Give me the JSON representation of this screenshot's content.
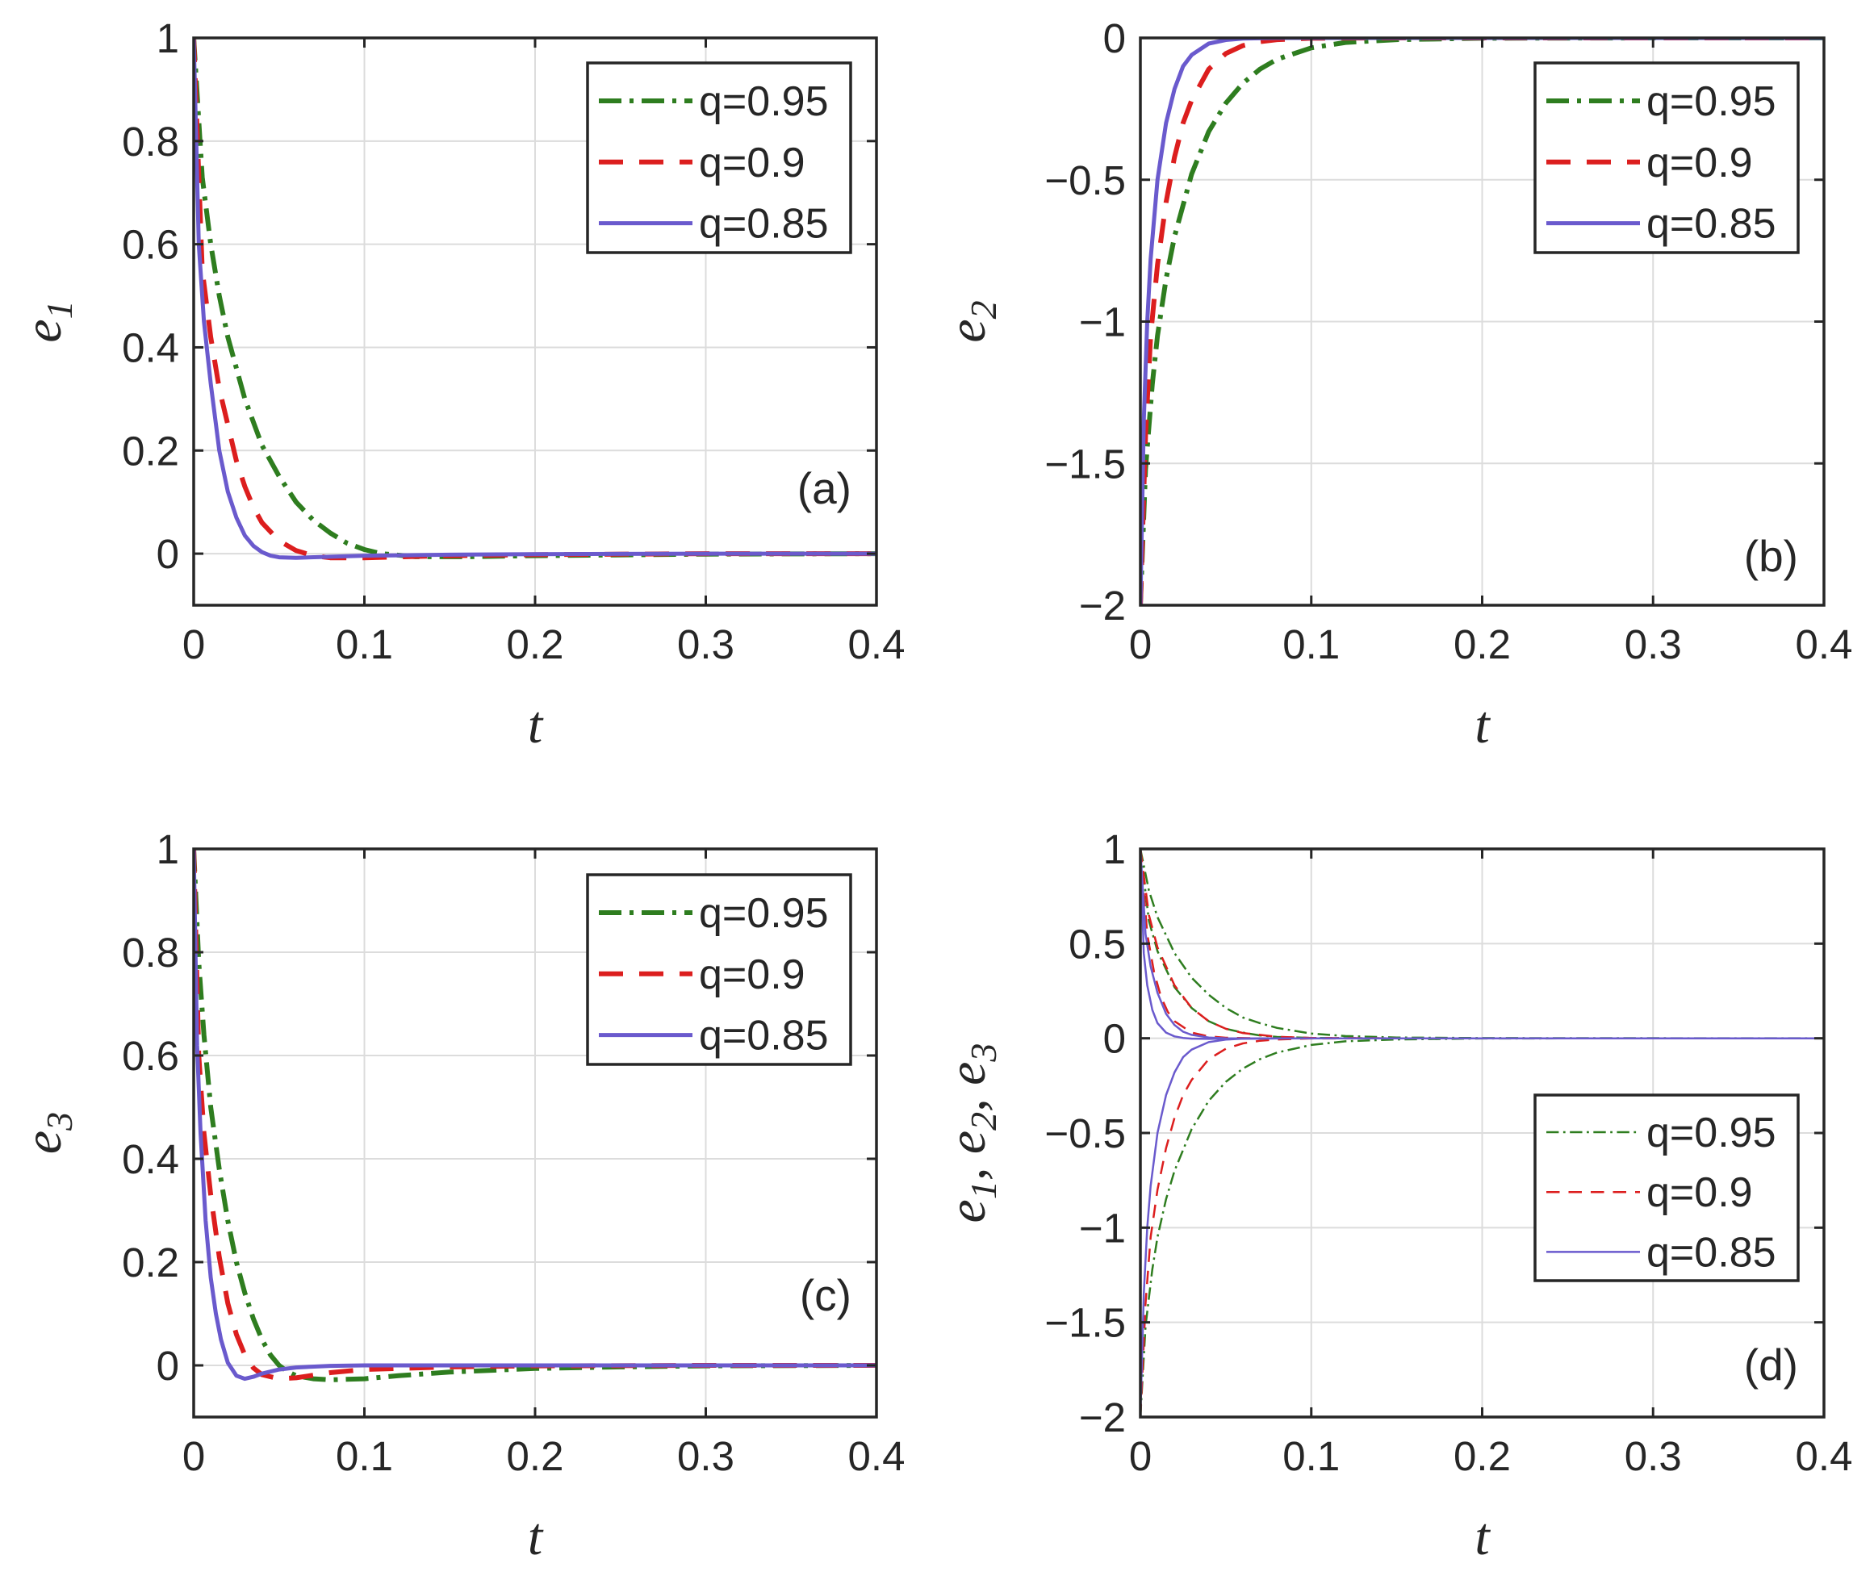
{
  "chart_data": [
    {
      "panel": "(a)",
      "type": "line",
      "title": "",
      "xlabel": "t",
      "ylabel": {
        "main": "e",
        "sub": "1"
      },
      "xlim": [
        0,
        0.4
      ],
      "ylim": [
        -0.1,
        1
      ],
      "xticks": [
        0,
        0.1,
        0.2,
        0.3,
        0.4
      ],
      "xtick_labels": [
        "0",
        "0.1",
        "0.2",
        "0.3",
        "0.4"
      ],
      "yticks": [
        0,
        0.2,
        0.4,
        0.6,
        0.8,
        1
      ],
      "ytick_labels": [
        "0",
        "0.2",
        "0.4",
        "0.6",
        "0.8",
        "1"
      ],
      "grid": true,
      "legend_position": "top-right",
      "series": [
        {
          "name": "q=0.95",
          "color": "#2e7d1f",
          "style": "dashdot",
          "x": [
            0,
            0.005,
            0.01,
            0.015,
            0.02,
            0.03,
            0.04,
            0.05,
            0.06,
            0.07,
            0.08,
            0.09,
            0.1,
            0.11,
            0.13,
            0.16,
            0.2,
            0.3,
            0.4
          ],
          "y": [
            1,
            0.73,
            0.6,
            0.5,
            0.42,
            0.3,
            0.21,
            0.15,
            0.1,
            0.065,
            0.04,
            0.02,
            0.008,
            0,
            -0.006,
            -0.006,
            -0.004,
            -0.001,
            0
          ]
        },
        {
          "name": "q=0.9",
          "color": "#dc1e1e",
          "style": "dashed",
          "x": [
            0,
            0.005,
            0.01,
            0.015,
            0.02,
            0.025,
            0.03,
            0.035,
            0.04,
            0.05,
            0.06,
            0.07,
            0.08,
            0.1,
            0.15,
            0.2,
            0.3,
            0.4
          ],
          "y": [
            1,
            0.55,
            0.42,
            0.32,
            0.25,
            0.18,
            0.13,
            0.09,
            0.06,
            0.025,
            0.006,
            -0.004,
            -0.008,
            -0.008,
            -0.004,
            -0.002,
            0,
            0
          ]
        },
        {
          "name": "q=0.85",
          "color": "#6a5acd",
          "style": "solid",
          "x": [
            0,
            0.003,
            0.006,
            0.01,
            0.015,
            0.02,
            0.025,
            0.03,
            0.035,
            0.04,
            0.045,
            0.05,
            0.06,
            0.08,
            0.1,
            0.15,
            0.2,
            0.3,
            0.4
          ],
          "y": [
            1,
            0.6,
            0.45,
            0.33,
            0.2,
            0.12,
            0.07,
            0.035,
            0.015,
            0.003,
            -0.004,
            -0.007,
            -0.008,
            -0.006,
            -0.004,
            -0.002,
            -0.001,
            0,
            0
          ]
        }
      ]
    },
    {
      "panel": "(b)",
      "type": "line",
      "title": "",
      "xlabel": "t",
      "ylabel": {
        "main": "e",
        "sub": "2"
      },
      "xlim": [
        0,
        0.4
      ],
      "ylim": [
        -2,
        0
      ],
      "xticks": [
        0,
        0.1,
        0.2,
        0.3,
        0.4
      ],
      "xtick_labels": [
        "0",
        "0.1",
        "0.2",
        "0.3",
        "0.4"
      ],
      "yticks": [
        -2,
        -1.5,
        -1,
        -0.5,
        0
      ],
      "ytick_labels": [
        "−2",
        "−1.5",
        "−1",
        "−0.5",
        "0"
      ],
      "grid": true,
      "legend_position": "top-right",
      "series": [
        {
          "name": "q=0.95",
          "color": "#2e7d1f",
          "style": "dashdot",
          "x": [
            0,
            0.003,
            0.007,
            0.01,
            0.015,
            0.02,
            0.03,
            0.04,
            0.05,
            0.06,
            0.07,
            0.08,
            0.1,
            0.12,
            0.15,
            0.2,
            0.3,
            0.4
          ],
          "y": [
            -2,
            -1.52,
            -1.22,
            -1.05,
            -0.85,
            -0.7,
            -0.48,
            -0.33,
            -0.23,
            -0.16,
            -0.11,
            -0.075,
            -0.035,
            -0.016,
            -0.006,
            -0.001,
            0,
            0
          ]
        },
        {
          "name": "q=0.9",
          "color": "#dc1e1e",
          "style": "dashed",
          "x": [
            0,
            0.003,
            0.006,
            0.01,
            0.015,
            0.02,
            0.025,
            0.03,
            0.04,
            0.05,
            0.06,
            0.07,
            0.08,
            0.1,
            0.15,
            0.2,
            0.4
          ],
          "y": [
            -2,
            -1.4,
            -1.05,
            -0.8,
            -0.58,
            -0.42,
            -0.3,
            -0.22,
            -0.11,
            -0.055,
            -0.027,
            -0.013,
            -0.006,
            -0.001,
            0,
            0,
            0
          ]
        },
        {
          "name": "q=0.85",
          "color": "#6a5acd",
          "style": "solid",
          "x": [
            0,
            0.002,
            0.004,
            0.006,
            0.01,
            0.015,
            0.02,
            0.025,
            0.03,
            0.04,
            0.05,
            0.06,
            0.08,
            0.1,
            0.2,
            0.4
          ],
          "y": [
            -2,
            -1.35,
            -1.0,
            -0.78,
            -0.5,
            -0.3,
            -0.18,
            -0.1,
            -0.06,
            -0.02,
            -0.007,
            -0.002,
            0,
            0,
            0,
            0
          ]
        }
      ]
    },
    {
      "panel": "(c)",
      "type": "line",
      "title": "",
      "xlabel": "t",
      "ylabel": {
        "main": "e",
        "sub": "3"
      },
      "xlim": [
        0,
        0.4
      ],
      "ylim": [
        -0.1,
        1
      ],
      "xticks": [
        0,
        0.1,
        0.2,
        0.3,
        0.4
      ],
      "xtick_labels": [
        "0",
        "0.1",
        "0.2",
        "0.3",
        "0.4"
      ],
      "yticks": [
        0,
        0.2,
        0.4,
        0.6,
        0.8,
        1
      ],
      "ytick_labels": [
        "0",
        "0.2",
        "0.4",
        "0.6",
        "0.8",
        "1"
      ],
      "grid": true,
      "legend_position": "top-right",
      "series": [
        {
          "name": "q=0.95",
          "color": "#2e7d1f",
          "style": "dashdot",
          "x": [
            0,
            0.003,
            0.006,
            0.01,
            0.015,
            0.02,
            0.025,
            0.03,
            0.035,
            0.04,
            0.045,
            0.05,
            0.055,
            0.06,
            0.07,
            0.08,
            0.1,
            0.12,
            0.15,
            0.2,
            0.25,
            0.3,
            0.4
          ],
          "y": [
            1,
            0.78,
            0.64,
            0.5,
            0.38,
            0.28,
            0.2,
            0.14,
            0.09,
            0.05,
            0.02,
            0,
            -0.012,
            -0.02,
            -0.026,
            -0.028,
            -0.026,
            -0.02,
            -0.013,
            -0.006,
            -0.003,
            -0.001,
            0
          ]
        },
        {
          "name": "q=0.9",
          "color": "#dc1e1e",
          "style": "dashed",
          "x": [
            0,
            0.003,
            0.006,
            0.01,
            0.015,
            0.02,
            0.025,
            0.03,
            0.035,
            0.04,
            0.05,
            0.06,
            0.07,
            0.08,
            0.1,
            0.15,
            0.2,
            0.3,
            0.4
          ],
          "y": [
            1,
            0.6,
            0.45,
            0.33,
            0.21,
            0.12,
            0.06,
            0.02,
            -0.005,
            -0.018,
            -0.026,
            -0.024,
            -0.019,
            -0.014,
            -0.008,
            -0.003,
            -0.001,
            0,
            0
          ]
        },
        {
          "name": "q=0.85",
          "color": "#6a5acd",
          "style": "solid",
          "x": [
            0,
            0.002,
            0.004,
            0.007,
            0.01,
            0.013,
            0.016,
            0.02,
            0.025,
            0.03,
            0.035,
            0.04,
            0.05,
            0.06,
            0.08,
            0.1,
            0.15,
            0.2,
            0.4
          ],
          "y": [
            1,
            0.62,
            0.45,
            0.28,
            0.17,
            0.1,
            0.05,
            0.005,
            -0.02,
            -0.026,
            -0.022,
            -0.016,
            -0.008,
            -0.004,
            -0.001,
            0,
            0,
            0,
            0
          ]
        }
      ]
    },
    {
      "panel": "(d)",
      "type": "line",
      "title": "",
      "xlabel": "t",
      "ylabel": {
        "main": "e",
        "sub1": "1",
        "sep1": ", e",
        "sub2": "2",
        "sep2": ", e",
        "sub3": "3"
      },
      "xlim": [
        0,
        0.4
      ],
      "ylim": [
        -2,
        1
      ],
      "xticks": [
        0,
        0.1,
        0.2,
        0.3,
        0.4
      ],
      "xtick_labels": [
        "0",
        "0.1",
        "0.2",
        "0.3",
        "0.4"
      ],
      "yticks": [
        -2,
        -1.5,
        -1,
        -0.5,
        0,
        0.5,
        1
      ],
      "ytick_labels": [
        "−2",
        "−1.5",
        "−1",
        "−0.5",
        "0",
        "0.5",
        "1"
      ],
      "grid": true,
      "legend_position": "bottom-right",
      "series": [
        {
          "name": "q=0.95",
          "group": "e1",
          "color": "#2e7d1f",
          "style": "dashdot",
          "x": [
            0,
            0.005,
            0.01,
            0.02,
            0.03,
            0.04,
            0.05,
            0.06,
            0.07,
            0.08,
            0.1,
            0.12,
            0.15,
            0.2,
            0.4
          ],
          "y": [
            1,
            0.78,
            0.64,
            0.45,
            0.32,
            0.23,
            0.16,
            0.11,
            0.08,
            0.055,
            0.025,
            0.012,
            0.004,
            0.001,
            0
          ]
        },
        {
          "name": "q=0.95",
          "group": "e3",
          "color": "#2e7d1f",
          "style": "dashdot",
          "x": [
            0,
            0.005,
            0.01,
            0.02,
            0.03,
            0.04,
            0.05,
            0.06,
            0.07,
            0.08,
            0.1,
            0.15,
            0.4
          ],
          "y": [
            1,
            0.62,
            0.46,
            0.27,
            0.16,
            0.09,
            0.05,
            0.03,
            0.015,
            0.007,
            0.002,
            0,
            0
          ]
        },
        {
          "name": "q=0.95",
          "group": "e2",
          "color": "#2e7d1f",
          "style": "dashdot",
          "x": [
            0,
            0.003,
            0.007,
            0.01,
            0.015,
            0.02,
            0.03,
            0.04,
            0.05,
            0.06,
            0.07,
            0.08,
            0.1,
            0.12,
            0.15,
            0.2,
            0.3,
            0.4
          ],
          "y": [
            -2,
            -1.52,
            -1.22,
            -1.05,
            -0.85,
            -0.7,
            -0.48,
            -0.33,
            -0.23,
            -0.16,
            -0.11,
            -0.075,
            -0.035,
            -0.016,
            -0.006,
            -0.001,
            0,
            0
          ]
        },
        {
          "name": "q=0.9",
          "group": "e1",
          "color": "#dc1e1e",
          "style": "dashed",
          "x": [
            0,
            0.005,
            0.01,
            0.02,
            0.03,
            0.04,
            0.05,
            0.06,
            0.08,
            0.1,
            0.15,
            0.4
          ],
          "y": [
            1,
            0.65,
            0.48,
            0.28,
            0.16,
            0.09,
            0.05,
            0.028,
            0.008,
            0.002,
            0,
            0
          ]
        },
        {
          "name": "q=0.9",
          "group": "e3",
          "color": "#dc1e1e",
          "style": "dashed",
          "x": [
            0,
            0.004,
            0.008,
            0.012,
            0.016,
            0.02,
            0.03,
            0.04,
            0.05,
            0.07,
            0.1,
            0.4
          ],
          "y": [
            1,
            0.55,
            0.35,
            0.22,
            0.14,
            0.09,
            0.03,
            0.01,
            0.003,
            0,
            0,
            0
          ]
        },
        {
          "name": "q=0.9",
          "group": "e2",
          "color": "#dc1e1e",
          "style": "dashed",
          "x": [
            0,
            0.003,
            0.006,
            0.01,
            0.015,
            0.02,
            0.025,
            0.03,
            0.04,
            0.05,
            0.06,
            0.07,
            0.08,
            0.1,
            0.15,
            0.4
          ],
          "y": [
            -2,
            -1.4,
            -1.05,
            -0.8,
            -0.58,
            -0.42,
            -0.3,
            -0.22,
            -0.11,
            -0.055,
            -0.027,
            -0.013,
            -0.006,
            -0.001,
            0,
            0
          ]
        },
        {
          "name": "q=0.85",
          "group": "e1",
          "color": "#6a5acd",
          "style": "solid",
          "x": [
            0,
            0.003,
            0.006,
            0.01,
            0.015,
            0.02,
            0.025,
            0.03,
            0.04,
            0.05,
            0.06,
            0.08,
            0.1,
            0.4
          ],
          "y": [
            1,
            0.55,
            0.38,
            0.24,
            0.13,
            0.07,
            0.035,
            0.018,
            0.004,
            0,
            -0.002,
            -0.001,
            0,
            0
          ]
        },
        {
          "name": "q=0.85",
          "group": "e3",
          "color": "#6a5acd",
          "style": "solid",
          "x": [
            0,
            0.002,
            0.004,
            0.007,
            0.01,
            0.015,
            0.02,
            0.025,
            0.03,
            0.04,
            0.05,
            0.06,
            0.08,
            0.1,
            0.4
          ],
          "y": [
            1,
            0.45,
            0.28,
            0.15,
            0.08,
            0.03,
            0.01,
            0.002,
            -0.002,
            -0.003,
            -0.002,
            -0.001,
            0,
            0,
            0
          ]
        },
        {
          "name": "q=0.85",
          "group": "e2",
          "color": "#6a5acd",
          "style": "solid",
          "x": [
            0,
            0.002,
            0.004,
            0.006,
            0.01,
            0.015,
            0.02,
            0.025,
            0.03,
            0.04,
            0.05,
            0.06,
            0.08,
            0.1,
            0.2,
            0.4
          ],
          "y": [
            -2,
            -1.35,
            -1.0,
            -0.78,
            -0.5,
            -0.3,
            -0.18,
            -0.1,
            -0.06,
            -0.02,
            -0.007,
            -0.002,
            0,
            0,
            0,
            0
          ]
        }
      ],
      "legend_entries": [
        {
          "name": "q=0.95",
          "color": "#2e7d1f",
          "style": "dashdot"
        },
        {
          "name": "q=0.9",
          "color": "#dc1e1e",
          "style": "dashed"
        },
        {
          "name": "q=0.85",
          "color": "#6a5acd",
          "style": "solid"
        }
      ]
    }
  ]
}
